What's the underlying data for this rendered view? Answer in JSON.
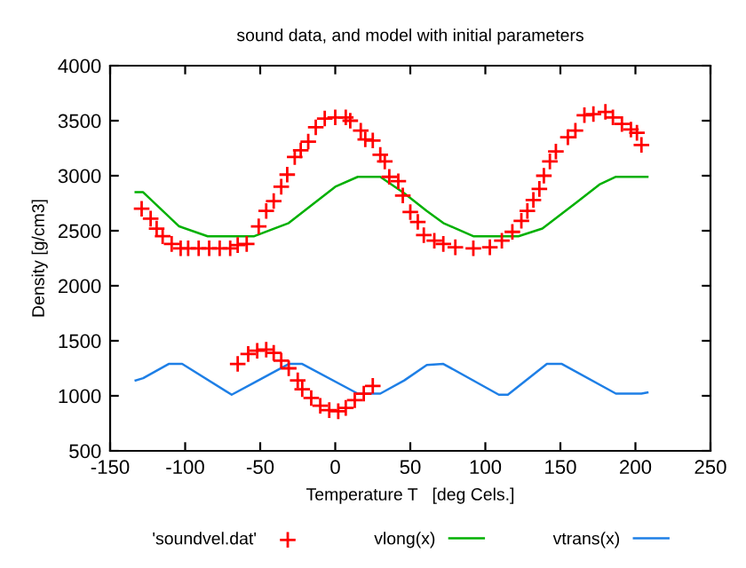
{
  "chart_data": {
    "type": "scatter",
    "title": "sound data, and model with initial parameters",
    "xlabel": "Temperature T   [deg Cels.]",
    "ylabel": "Density [g/cm3]",
    "xlim": [
      -150,
      250
    ],
    "xticks": [
      -150,
      -100,
      -50,
      0,
      50,
      100,
      150,
      200,
      250
    ],
    "ylim": [
      500,
      4000
    ],
    "yticks": [
      500,
      1000,
      1500,
      2000,
      2500,
      3000,
      3500,
      4000
    ],
    "grid": false,
    "legend": "bottom",
    "series": [
      {
        "name": "'soundvel.dat'",
        "marker": "cross",
        "color": "#ff0000",
        "x": [
          -129,
          -123,
          -119,
          -115,
          -109,
          -103,
          -98,
          -91,
          -84,
          -77,
          -70,
          -65,
          -59,
          -51,
          -46,
          -41,
          -36,
          -32,
          -27,
          -23,
          -18,
          -13,
          -7,
          0,
          7,
          10,
          17,
          20,
          25,
          30,
          33,
          36,
          42,
          45,
          50,
          55,
          59,
          66,
          72,
          80,
          92,
          103,
          111,
          118,
          124,
          128,
          132,
          136,
          139,
          143,
          147,
          155,
          160,
          166,
          172,
          180,
          185,
          191,
          197,
          201,
          204,
          -65,
          -58,
          -52,
          -46,
          -41,
          -36,
          -31,
          -25,
          -22,
          -16,
          -10,
          -4,
          2,
          7,
          13,
          19,
          25
        ],
        "values": [
          2700,
          2610,
          2520,
          2450,
          2380,
          2340,
          2340,
          2340,
          2340,
          2340,
          2340,
          2370,
          2380,
          2540,
          2680,
          2770,
          2900,
          3010,
          3170,
          3230,
          3310,
          3440,
          3520,
          3530,
          3530,
          3500,
          3410,
          3330,
          3320,
          3190,
          3130,
          2990,
          2950,
          2820,
          2670,
          2580,
          2460,
          2410,
          2380,
          2350,
          2340,
          2350,
          2410,
          2490,
          2590,
          2680,
          2780,
          2880,
          3000,
          3130,
          3220,
          3350,
          3410,
          3550,
          3560,
          3580,
          3530,
          3470,
          3420,
          3390,
          3280,
          1290,
          1380,
          1410,
          1420,
          1390,
          1320,
          1250,
          1140,
          1060,
          980,
          910,
          870,
          860,
          890,
          960,
          1020,
          1090
        ]
      },
      {
        "name": "vlong(x)",
        "type": "line",
        "marker": "none",
        "color": "#00b000",
        "x": [
          -133,
          -128,
          -104,
          -85,
          -54,
          -31,
          -16,
          0,
          15,
          30,
          46,
          61,
          72,
          92,
          122,
          138,
          161,
          176,
          187,
          208
        ],
        "values": [
          2850,
          2850,
          2540,
          2450,
          2450,
          2570,
          2730,
          2900,
          2990,
          2990,
          2840,
          2680,
          2570,
          2450,
          2450,
          2520,
          2760,
          2920,
          2990,
          2990
        ]
      },
      {
        "name": "vtrans(x)",
        "type": "line",
        "marker": "none",
        "color": "#1e7fe6",
        "x": [
          -133,
          -128,
          -111,
          -102,
          -69,
          -54,
          -31,
          -22,
          15,
          30,
          46,
          61,
          72,
          109,
          115,
          141,
          151,
          187,
          204,
          208
        ],
        "values": [
          1140,
          1160,
          1290,
          1290,
          1010,
          1120,
          1290,
          1290,
          1020,
          1020,
          1140,
          1280,
          1290,
          1010,
          1010,
          1290,
          1290,
          1020,
          1020,
          1030
        ]
      }
    ]
  }
}
